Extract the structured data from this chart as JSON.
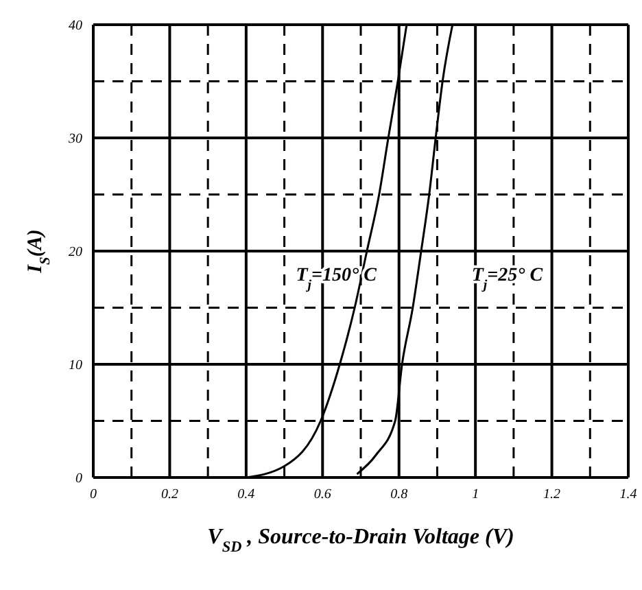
{
  "chart_data": {
    "type": "line",
    "xlabel": "V$_{SD}$ , Source-to-Drain Voltage (V)",
    "ylabel": "I$_{S}$(A)",
    "xlim": [
      0,
      1.4
    ],
    "xticks": [
      0,
      {
        "value": 0.1,
        "label": null
      },
      0.2,
      {
        "value": 0.3,
        "label": null
      },
      0.4,
      {
        "value": 0.5,
        "label": null
      },
      0.6,
      {
        "value": 0.7,
        "label": null
      },
      0.8,
      {
        "value": 0.9,
        "label": null
      },
      1,
      {
        "value": 1.1,
        "label": null
      },
      1.2,
      {
        "value": 1.3,
        "label": null
      },
      1.4
    ],
    "ylim": [
      0,
      40
    ],
    "yticks": [
      0,
      {
        "value": 5,
        "label": null
      },
      10,
      {
        "value": 15,
        "label": null
      },
      20,
      {
        "value": 25,
        "label": null
      },
      30,
      {
        "value": 35,
        "label": null
      },
      40
    ],
    "grid": true,
    "marker": "none",
    "line_style": "solid",
    "series": [
      {
        "name": "T$_{j}$=150° C",
        "color": "#000000",
        "x": [
          0.4,
          0.5,
          0.595,
          0.645,
          0.684,
          0.716,
          0.748,
          0.772,
          0.797,
          0.82
        ],
        "values": [
          0,
          1,
          5,
          10,
          15,
          20,
          25,
          30,
          35,
          40
        ]
      },
      {
        "name": "T$_{j}$=25° C",
        "color": "#000000",
        "x": [
          0.69,
          0.74,
          0.79,
          0.808,
          0.836,
          0.858,
          0.879,
          0.896,
          0.914,
          0.94
        ],
        "values": [
          0.3,
          2,
          5,
          10,
          15,
          20,
          25,
          30,
          35,
          40
        ]
      }
    ]
  }
}
